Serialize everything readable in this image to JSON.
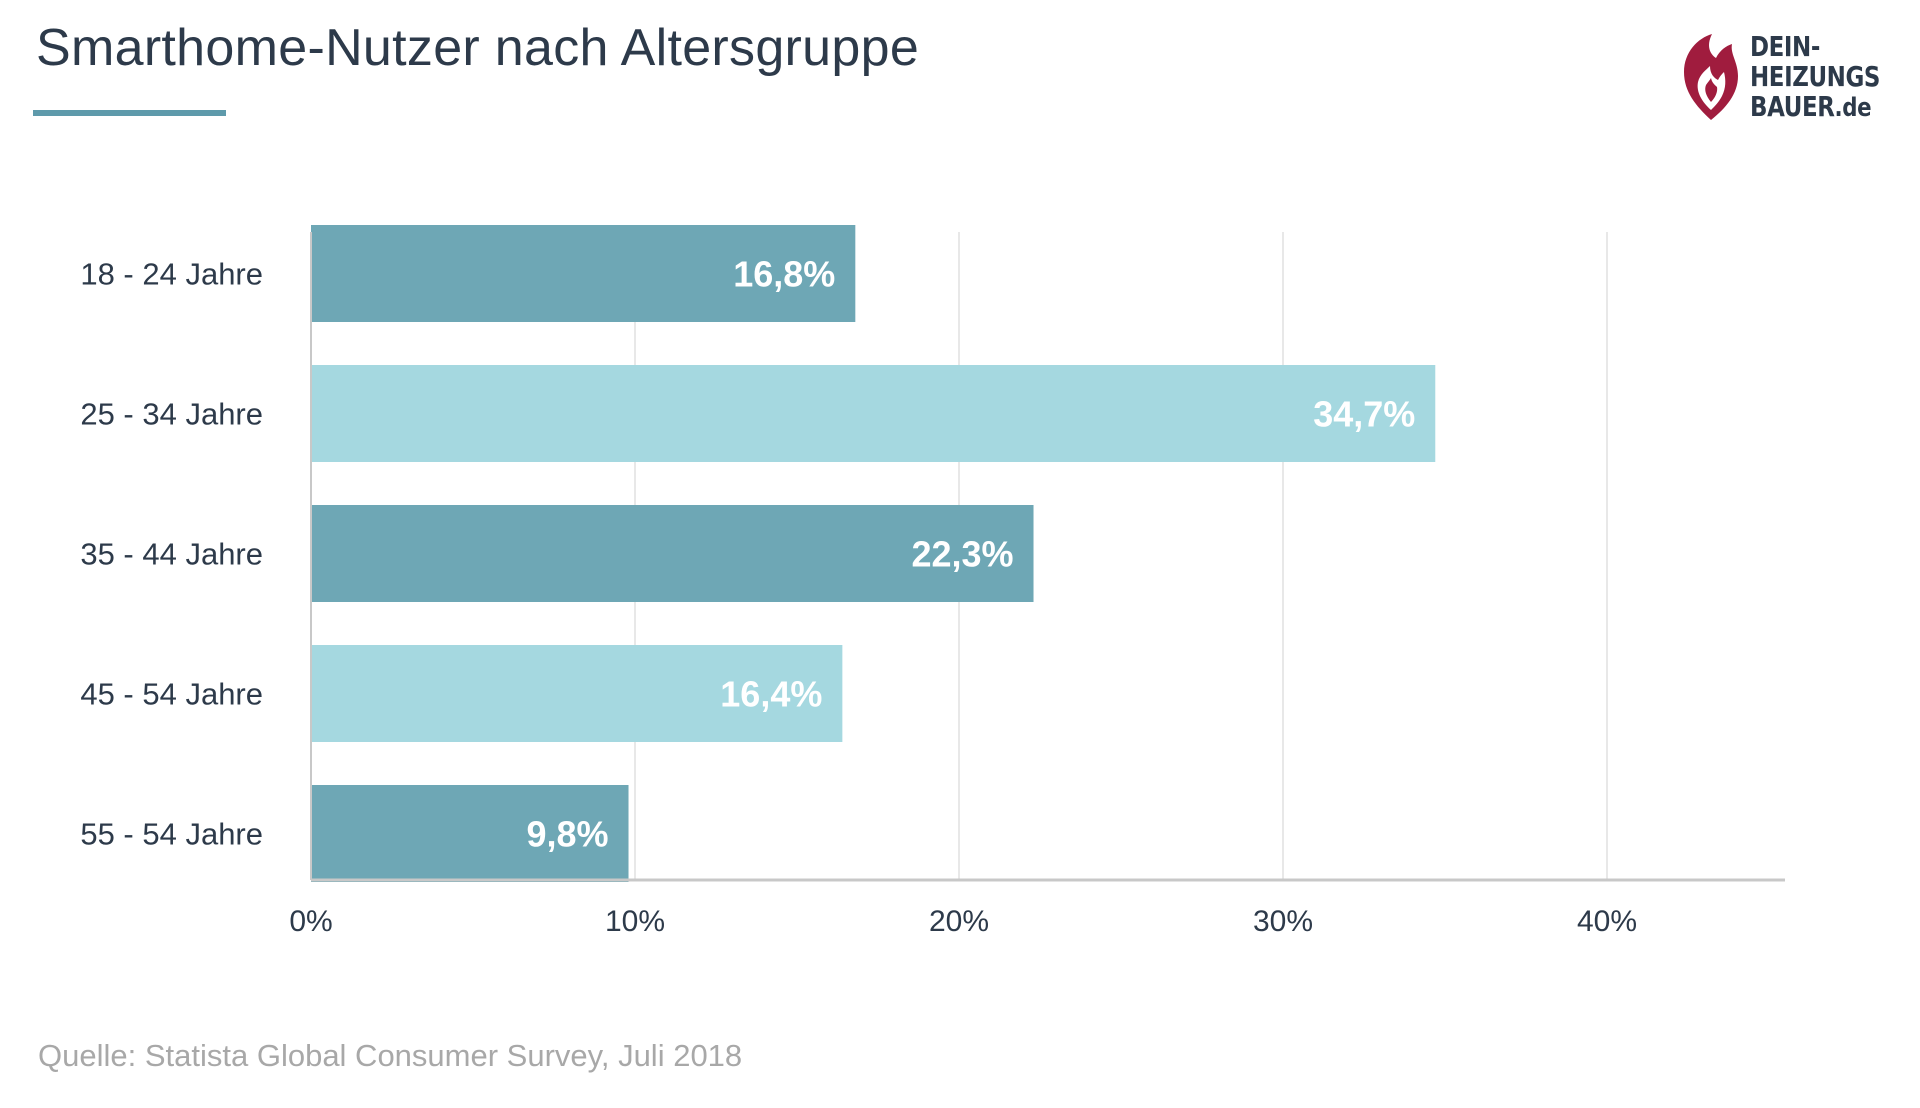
{
  "header": {
    "title": "Smarthome-Nutzer nach Altersgruppe"
  },
  "logo": {
    "line1": "DEIN-",
    "line2": "HEIZUNGS",
    "line3": "BAUER",
    "tld": ".de",
    "icon": "flame-icon"
  },
  "footer": {
    "source": "Quelle: Statista Global Consumer Survey, Juli 2018"
  },
  "colors": {
    "title": "#2d3a4a",
    "accent": "#5e9aab",
    "bar_dark": "#6ea7b5",
    "bar_light": "#a5d8e0",
    "bar_label": "#ffffff",
    "axis": "#c8c8c8",
    "grid": "#e8e8e8",
    "tick_text": "#2d3a4a",
    "source": "#a8a8a8",
    "logo_red": "#a01c3e"
  },
  "chart_data": {
    "type": "bar",
    "orientation": "horizontal",
    "title": "Smarthome-Nutzer nach Altersgruppe",
    "xlabel": "",
    "ylabel": "",
    "categories": [
      "18 - 24 Jahre",
      "25 - 34 Jahre",
      "35 - 44 Jahre",
      "45 - 54 Jahre",
      "55 - 54 Jahre"
    ],
    "values": [
      16.8,
      34.7,
      22.3,
      16.4,
      9.8
    ],
    "value_labels": [
      "16,8%",
      "34,7%",
      "22,3%",
      "16,4%",
      "9,8%"
    ],
    "xlim": [
      0,
      46
    ],
    "xticks": [
      0,
      10,
      20,
      30,
      40
    ],
    "xtick_labels": [
      "0%",
      "10%",
      "20%",
      "30%",
      "40%"
    ],
    "grid": true,
    "legend": "none"
  }
}
